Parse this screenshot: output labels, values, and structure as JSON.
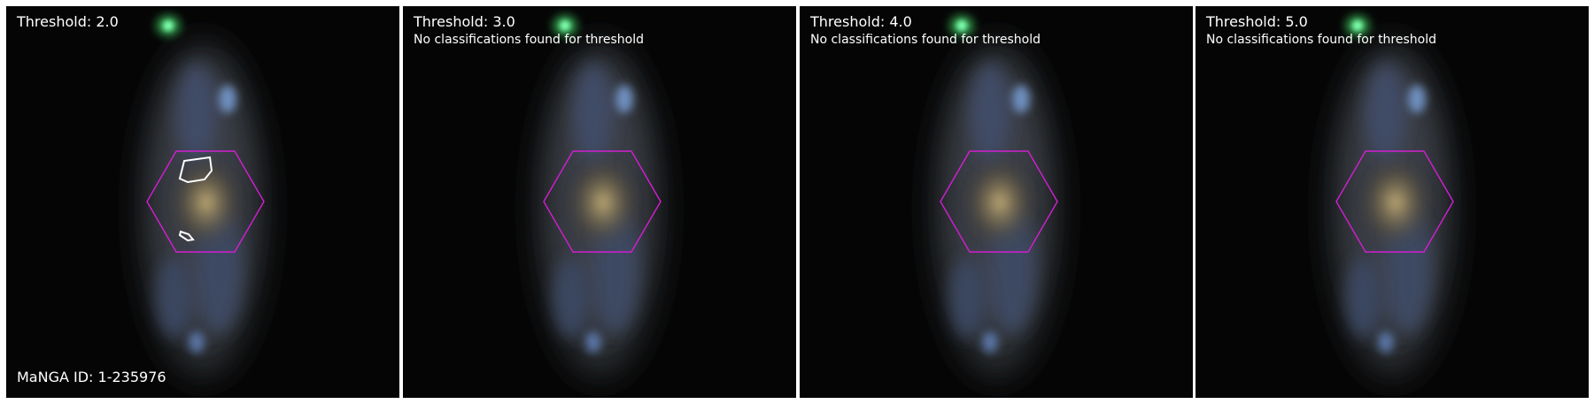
{
  "manga_id": "MaNGA ID: 1-235976",
  "colors": {
    "hexagon": "#d21fd2",
    "contour": "#ffffff",
    "background": "#050505"
  },
  "panels": [
    {
      "threshold": "Threshold: 2.0",
      "message": "",
      "contours": true
    },
    {
      "threshold": "Threshold: 3.0",
      "message": "No classifications found for threshold",
      "contours": false
    },
    {
      "threshold": "Threshold: 4.0",
      "message": "No classifications found for threshold",
      "contours": false
    },
    {
      "threshold": "Threshold: 5.0",
      "message": "No classifications found for threshold",
      "contours": false
    }
  ]
}
